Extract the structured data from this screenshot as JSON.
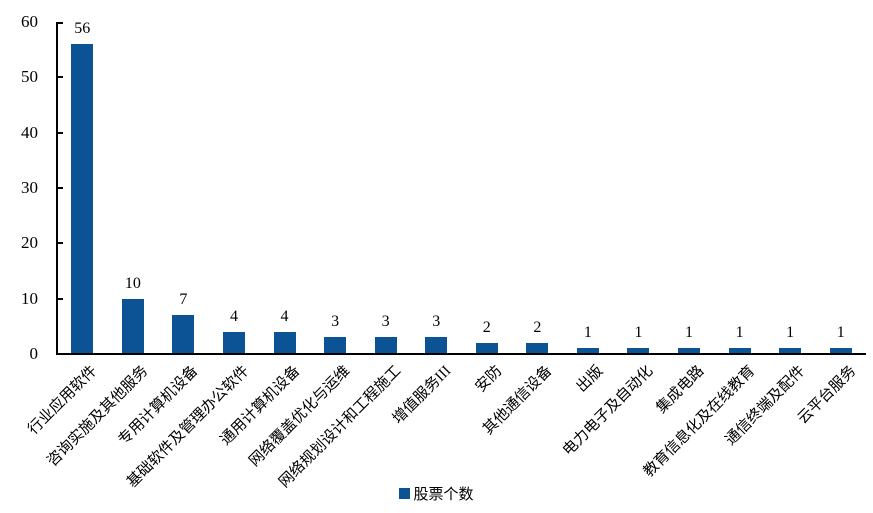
{
  "colors": {
    "bar": "#0B5394",
    "axis": "#000000",
    "background": "#FFFFFF"
  },
  "legend": {
    "label": "股票个数"
  },
  "chart_data": {
    "type": "bar",
    "title": "",
    "xlabel": "",
    "ylabel": "",
    "categories": [
      "行业应用软件",
      "咨询实施及其他服务",
      "专用计算机设备",
      "基础软件及管理办公软件",
      "通用计算机设备",
      "网络覆盖优化与运维",
      "网络规划设计和工程施工",
      "增值服务III",
      "安防",
      "其他通信设备",
      "出版",
      "电力电子及自动化",
      "集成电路",
      "教育信息化及在线教育",
      "通信终端及配件",
      "云平台服务"
    ],
    "values": [
      56,
      10,
      7,
      4,
      4,
      3,
      3,
      3,
      2,
      2,
      1,
      1,
      1,
      1,
      1,
      1
    ],
    "series": [
      {
        "name": "股票个数",
        "values": [
          56,
          10,
          7,
          4,
          4,
          3,
          3,
          3,
          2,
          2,
          1,
          1,
          1,
          1,
          1,
          1
        ]
      }
    ],
    "ylim": [
      0,
      60
    ],
    "yticks": [
      0,
      10,
      20,
      30,
      40,
      50,
      60
    ],
    "grid": false,
    "bar_labels": true,
    "legend": [
      "股票个数"
    ],
    "legend_position": "bottom",
    "x_tick_rotation": 45
  }
}
